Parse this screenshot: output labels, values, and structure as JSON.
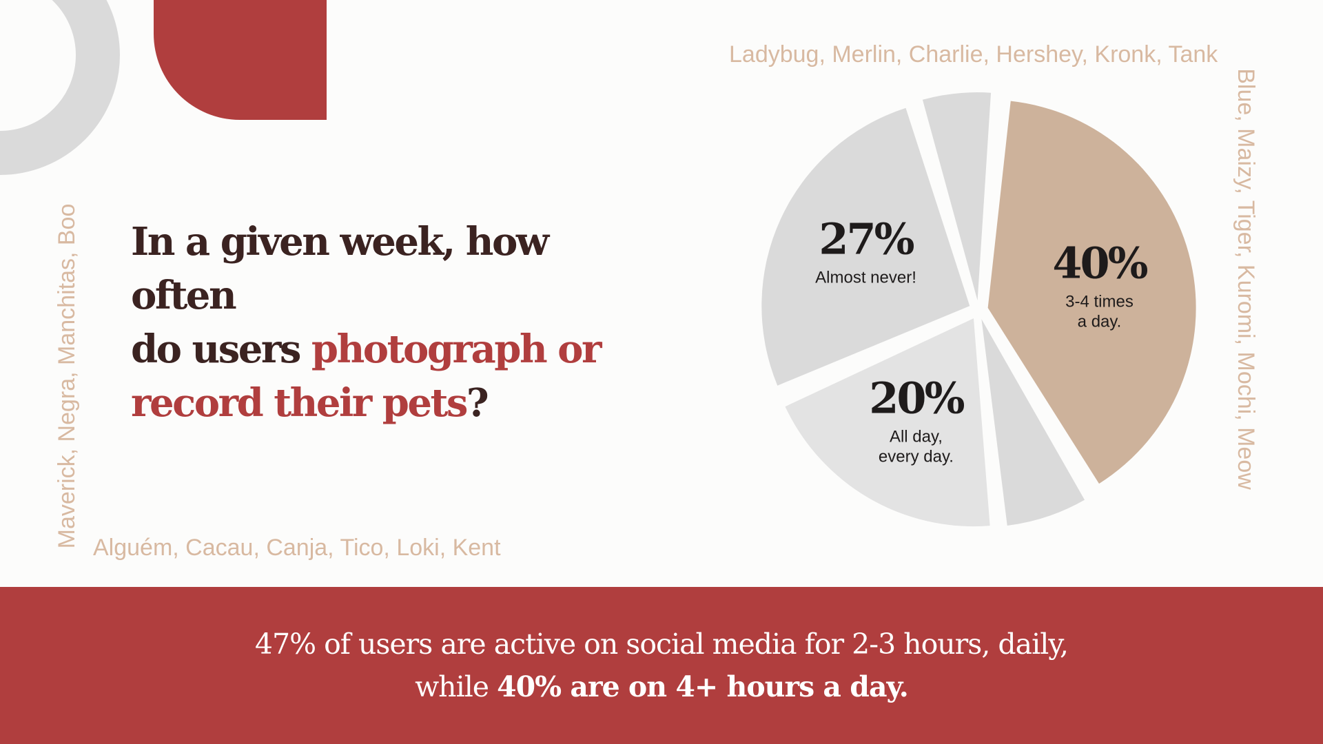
{
  "colors": {
    "background": "#FCFCFB",
    "accent_red": "#B03E3E",
    "tan": "#CDB29B",
    "light_gray": "#DADADA",
    "name_text": "#D8B9A1",
    "heading": "#3B2321"
  },
  "decor": {
    "shapes": [
      "gray-ring",
      "red-leaf"
    ]
  },
  "pet_names": {
    "top": "Ladybug, Merlin, Charlie, Hershey, Kronk, Tank",
    "right": "Blue, Maizy, Tiger, Kuromi, Mochi, Meow",
    "bottom": "Alguém, Cacau, Canja, Tico, Loki, Kent",
    "left": "Maverick, Negra, Manchitas, Boo"
  },
  "question": {
    "line1": "In a given week, how often",
    "line2_plain": "do users ",
    "line2_accent": "photograph or",
    "line3_accent": "record their pets",
    "line3_plain": "?"
  },
  "chart_data": {
    "type": "pie",
    "title": "",
    "slices": [
      {
        "pct_label": "40%",
        "desc_lines": [
          "3-4 times",
          "a day."
        ],
        "value": 40,
        "color": "#CDB29B"
      },
      {
        "pct_label": "",
        "desc_lines": [],
        "value": 7,
        "color": "#DADADA"
      },
      {
        "pct_label": "20%",
        "desc_lines": [
          "All day,",
          "every day."
        ],
        "value": 20,
        "color": "#E3E3E3"
      },
      {
        "pct_label": "27%",
        "desc_lines": [
          "Almost never!"
        ],
        "value": 27,
        "color": "#DADADA"
      },
      {
        "pct_label": "",
        "desc_lines": [],
        "value": 6,
        "color": "#DADADA"
      }
    ]
  },
  "footer": {
    "line1": "47% of users are active on social media for 2-3 hours, daily,",
    "line2_plain": "while ",
    "line2_bold": "40% are on 4+ hours a day."
  }
}
